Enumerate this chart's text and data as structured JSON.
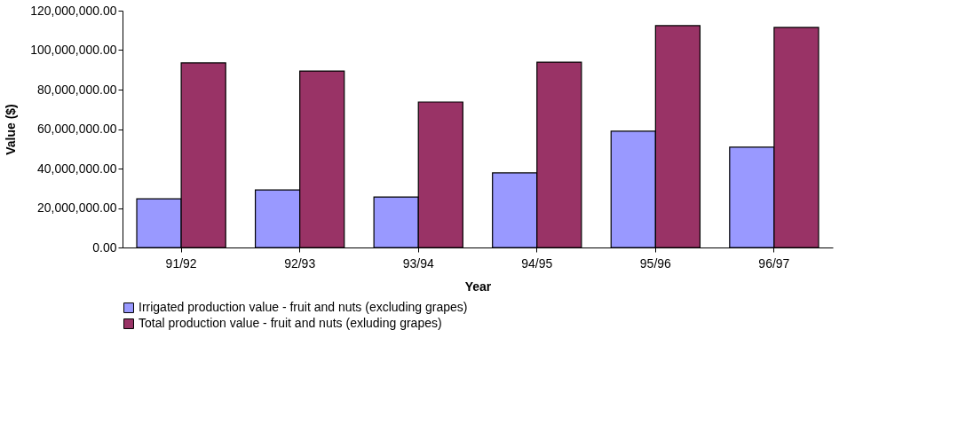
{
  "chart_data": {
    "type": "bar",
    "xlabel": "Year",
    "ylabel": "Value ($)",
    "categories": [
      "91/92",
      "92/93",
      "93/94",
      "94/95",
      "95/96",
      "96/97"
    ],
    "series": [
      {
        "name": "Irrigated production value - fruit and nuts (excluding grapes)",
        "color": "#9999ff",
        "values": [
          24700000,
          29200000,
          25600000,
          37800000,
          58900000,
          50800000
        ]
      },
      {
        "name": "Total production value - fruit and nuts (exluding grapes)",
        "color": "#993366",
        "values": [
          93500000,
          89400000,
          73700000,
          93900000,
          112400000,
          111500000
        ]
      }
    ],
    "ylim": [
      0,
      120000000
    ],
    "yticks": [
      {
        "value": 0,
        "label": "0.00"
      },
      {
        "value": 20000000,
        "label": "20,000,000.00"
      },
      {
        "value": 40000000,
        "label": "40,000,000.00"
      },
      {
        "value": 60000000,
        "label": "60,000,000.00"
      },
      {
        "value": 80000000,
        "label": "80,000,000.00"
      },
      {
        "value": 100000000,
        "label": "100,000,000.00"
      },
      {
        "value": 120000000,
        "label": "120,000,000.00"
      }
    ],
    "grid": false,
    "legend": "bottom"
  }
}
